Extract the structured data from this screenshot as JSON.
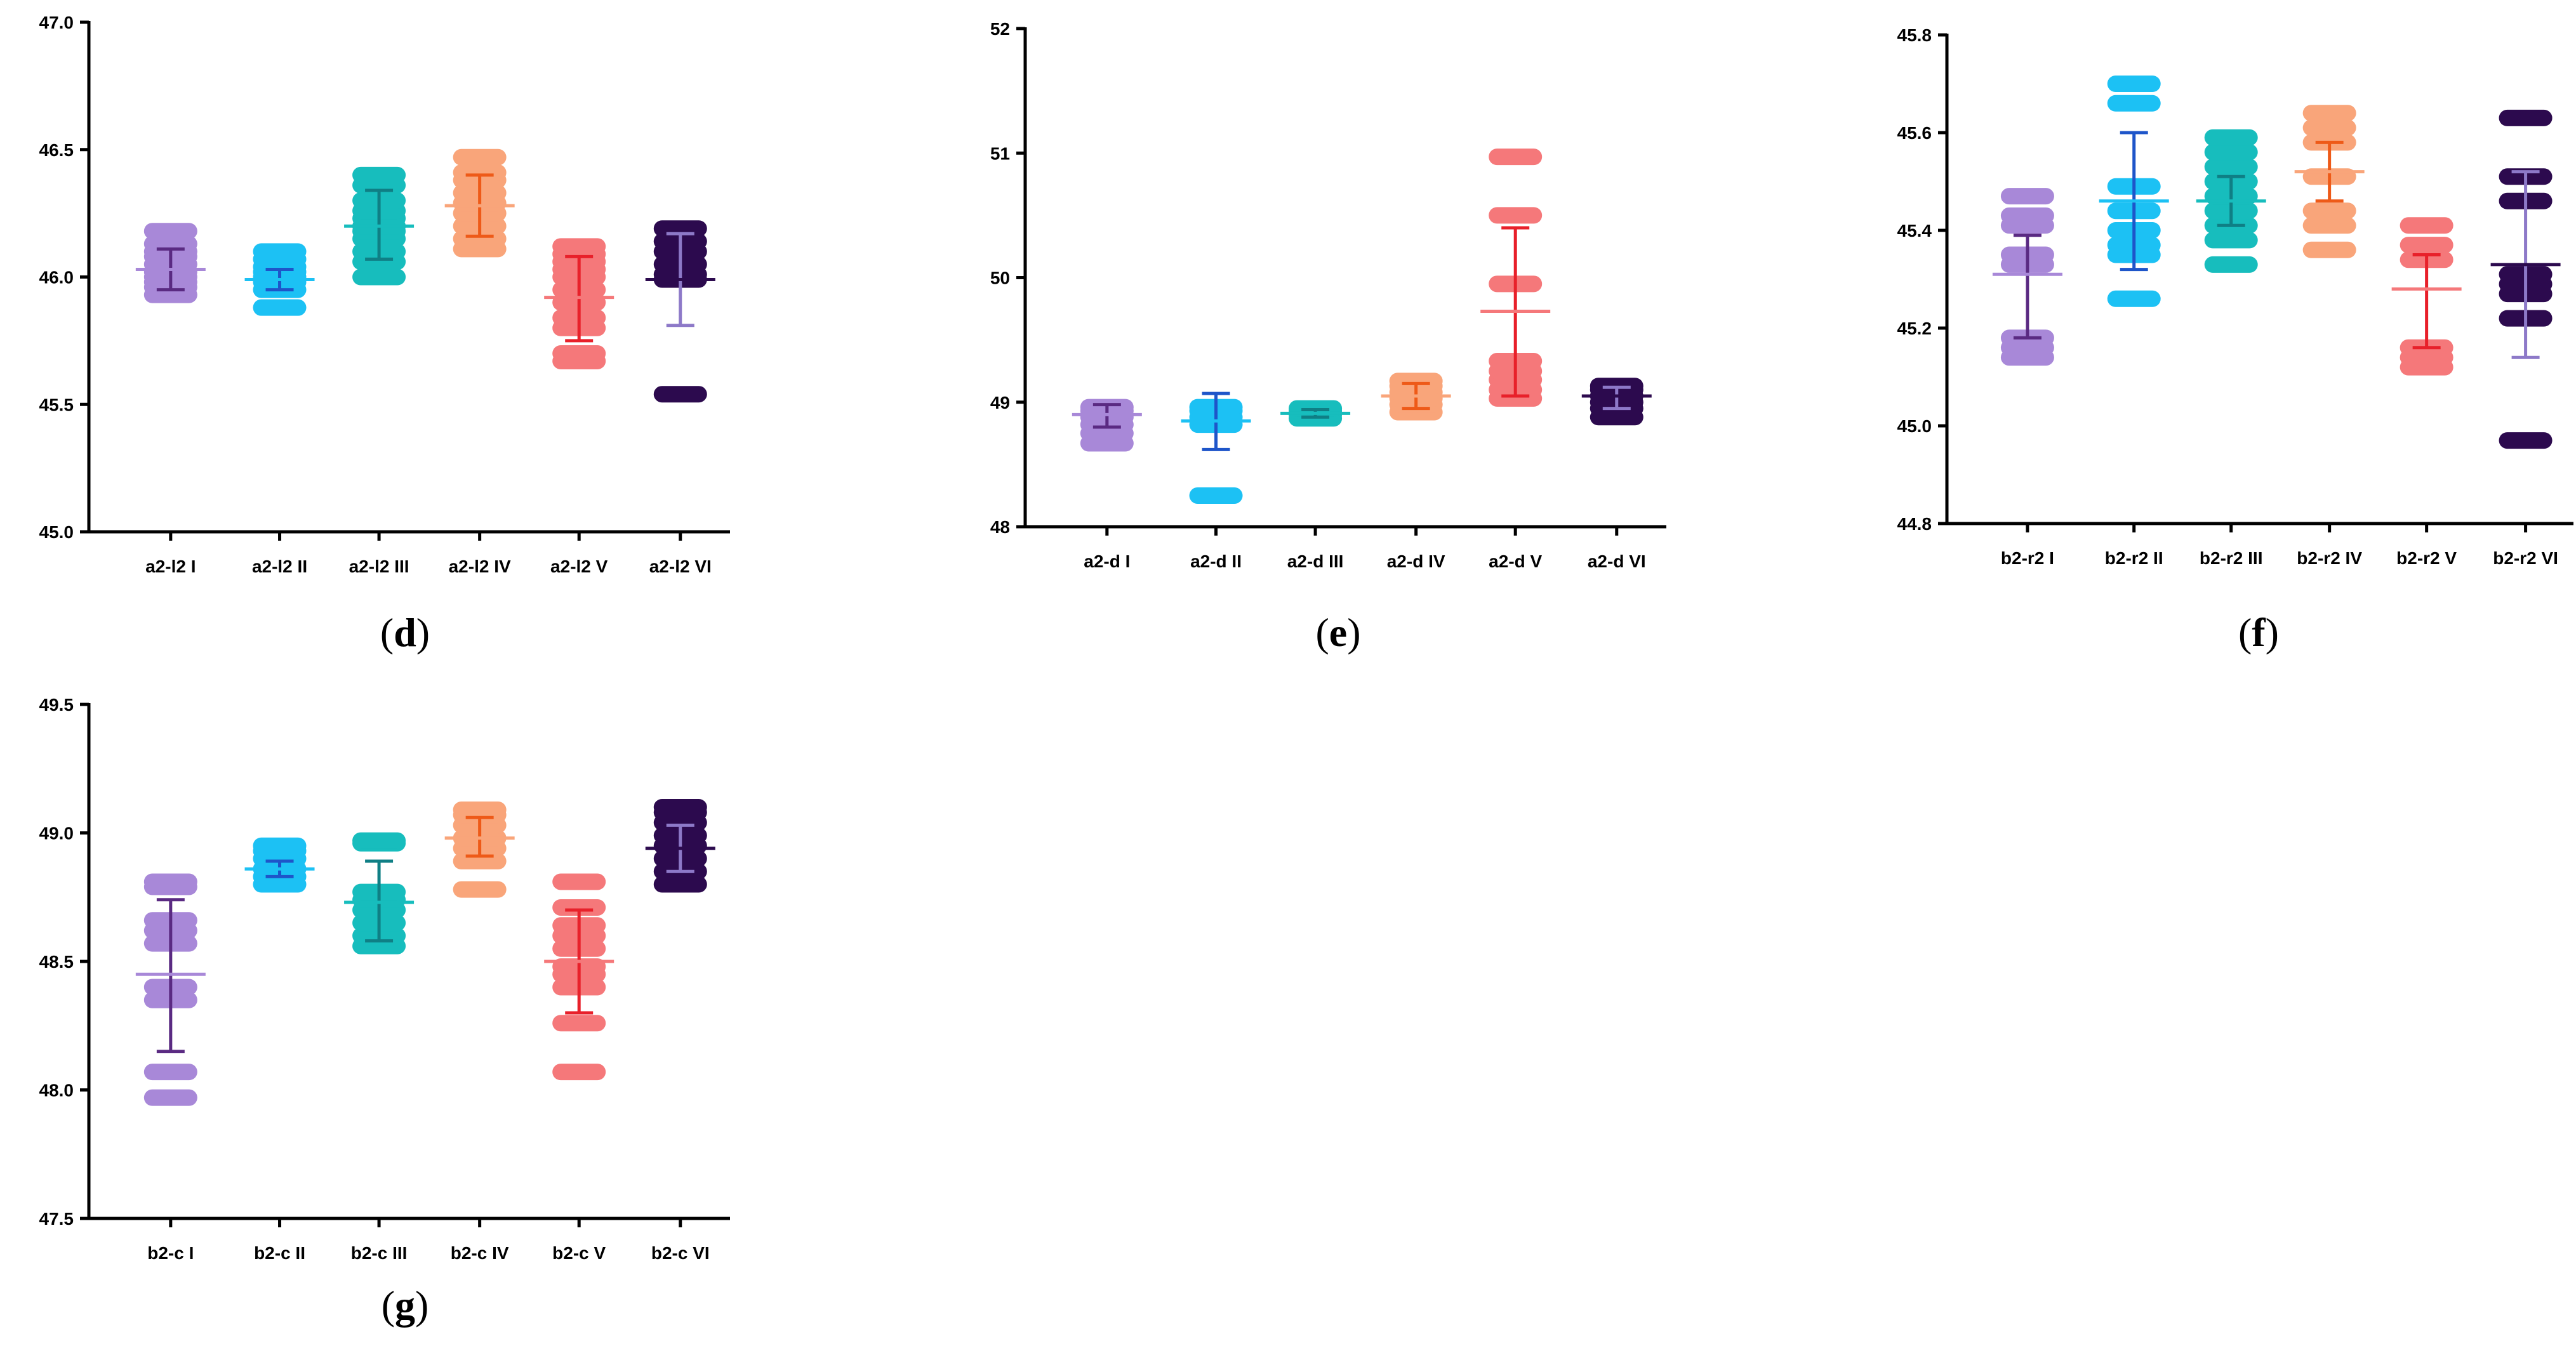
{
  "colors": [
    "#a888d8",
    "#1cc1f4",
    "#17bdbd",
    "#f9a57a",
    "#f5787a",
    "#2c0a4e"
  ],
  "bar_colors": [
    "#5a2a82",
    "#1e55c9",
    "#0f7f85",
    "#ee5a18",
    "#e8202a",
    "#8d79c8"
  ],
  "chart_data": [
    {
      "type": "scatter",
      "panel_label": "d",
      "categories": [
        "a2-l2 I",
        "a2-l2 II",
        "a2-l2 III",
        "a2-l2 IV",
        "a2-l2 V",
        "a2-l2 VI"
      ],
      "ylim": [
        45.0,
        47.0
      ],
      "yticks": [
        "45.0",
        "45.5",
        "46.0",
        "46.5",
        "47.0"
      ],
      "series": [
        {
          "name": "a2-l2 I",
          "points": [
            45.93,
            45.96,
            45.98,
            46.0,
            46.02,
            46.05,
            46.08,
            46.1,
            46.13,
            46.18
          ],
          "mean": 46.03,
          "sd_low": 45.95,
          "sd_high": 46.11
        },
        {
          "name": "a2-l2 II",
          "points": [
            45.88,
            45.95,
            45.98,
            46.0,
            46.02,
            46.04,
            46.07,
            46.1
          ],
          "mean": 45.99,
          "sd_low": 45.95,
          "sd_high": 46.03
        },
        {
          "name": "a2-l2 III",
          "points": [
            46.0,
            46.06,
            46.1,
            46.15,
            46.18,
            46.2,
            46.23,
            46.26,
            46.3,
            46.36,
            46.4
          ],
          "mean": 46.2,
          "sd_low": 46.07,
          "sd_high": 46.34
        },
        {
          "name": "a2-l2 IV",
          "points": [
            46.11,
            46.15,
            46.2,
            46.25,
            46.29,
            46.33,
            46.38,
            46.41,
            46.47
          ],
          "mean": 46.28,
          "sd_low": 46.16,
          "sd_high": 46.4
        },
        {
          "name": "a2-l2 V",
          "points": [
            45.67,
            45.7,
            45.8,
            45.84,
            45.9,
            45.95,
            46.0,
            46.03,
            46.06,
            46.09,
            46.12
          ],
          "mean": 45.92,
          "sd_low": 45.75,
          "sd_high": 46.08
        },
        {
          "name": "a2-l2 VI",
          "points": [
            45.54,
            45.99,
            46.01,
            46.05,
            46.1,
            46.14,
            46.19
          ],
          "mean": 45.99,
          "sd_low": 45.81,
          "sd_high": 46.17
        }
      ]
    },
    {
      "type": "scatter",
      "panel_label": "e",
      "categories": [
        "a2-d I",
        "a2-d II",
        "a2-d III",
        "a2-d IV",
        "a2-d V",
        "a2-d VI"
      ],
      "ylim": [
        48,
        52
      ],
      "yticks": [
        "48",
        "49",
        "50",
        "51",
        "52"
      ],
      "series": [
        {
          "name": "a2-d I",
          "points": [
            48.67,
            48.75,
            48.82,
            48.88,
            48.93,
            48.96
          ],
          "mean": 48.9,
          "sd_low": 48.8,
          "sd_high": 48.98
        },
        {
          "name": "a2-d II",
          "points": [
            48.25,
            48.82,
            48.88,
            48.93,
            48.96
          ],
          "mean": 48.85,
          "sd_low": 48.62,
          "sd_high": 49.07
        },
        {
          "name": "a2-d III",
          "points": [
            48.87,
            48.9,
            48.93,
            48.95
          ],
          "mean": 48.91,
          "sd_low": 48.88,
          "sd_high": 48.94
        },
        {
          "name": "a2-d IV",
          "points": [
            48.92,
            48.98,
            49.03,
            49.08,
            49.13,
            49.17
          ],
          "mean": 49.05,
          "sd_low": 48.95,
          "sd_high": 49.15
        },
        {
          "name": "a2-d V",
          "points": [
            49.03,
            49.1,
            49.18,
            49.25,
            49.33,
            49.95,
            50.5,
            50.97
          ],
          "mean": 49.73,
          "sd_low": 49.05,
          "sd_high": 50.4
        },
        {
          "name": "a2-d VI",
          "points": [
            48.88,
            48.95,
            49.0,
            49.05,
            49.1,
            49.13
          ],
          "mean": 49.05,
          "sd_low": 48.95,
          "sd_high": 49.12
        }
      ]
    },
    {
      "type": "scatter",
      "panel_label": "f",
      "categories": [
        "b2-r2 I",
        "b2-r2 II",
        "b2-r2 III",
        "b2-r2 IV",
        "b2-r2 V",
        "b2-r2 VI"
      ],
      "ylim": [
        44.8,
        45.8
      ],
      "yticks": [
        "44.8",
        "45.0",
        "45.2",
        "45.4",
        "45.6",
        "45.8"
      ],
      "series": [
        {
          "name": "b2-r2 I",
          "points": [
            45.14,
            45.16,
            45.18,
            45.33,
            45.35,
            45.41,
            45.43,
            45.47
          ],
          "mean": 45.31,
          "sd_low": 45.18,
          "sd_high": 45.39
        },
        {
          "name": "b2-r2 II",
          "points": [
            45.26,
            45.35,
            45.37,
            45.4,
            45.44,
            45.49,
            45.66,
            45.7
          ],
          "mean": 45.46,
          "sd_low": 45.32,
          "sd_high": 45.6
        },
        {
          "name": "b2-r2 III",
          "points": [
            45.33,
            45.38,
            45.41,
            45.44,
            45.47,
            45.5,
            45.53,
            45.56,
            45.59
          ],
          "mean": 45.46,
          "sd_low": 45.41,
          "sd_high": 45.51
        },
        {
          "name": "b2-r2 IV",
          "points": [
            45.36,
            45.41,
            45.44,
            45.51,
            45.58,
            45.61,
            45.64
          ],
          "mean": 45.52,
          "sd_low": 45.46,
          "sd_high": 45.58
        },
        {
          "name": "b2-r2 V",
          "points": [
            45.12,
            45.14,
            45.16,
            45.34,
            45.37,
            45.41
          ],
          "mean": 45.28,
          "sd_low": 45.16,
          "sd_high": 45.35
        },
        {
          "name": "b2-r2 VI",
          "points": [
            44.97,
            45.22,
            45.27,
            45.29,
            45.31,
            45.46,
            45.51,
            45.63
          ],
          "mean": 45.33,
          "sd_low": 45.14,
          "sd_high": 45.52
        }
      ]
    },
    {
      "type": "scatter",
      "panel_label": "g",
      "categories": [
        "b2-c I",
        "b2-c II",
        "b2-c III",
        "b2-c IV",
        "b2-c V",
        "b2-c VI"
      ],
      "ylim": [
        47.5,
        49.5
      ],
      "yticks": [
        "47.5",
        "48.0",
        "48.5",
        "49.0",
        "49.5"
      ],
      "series": [
        {
          "name": "b2-c I",
          "points": [
            47.97,
            48.07,
            48.35,
            48.4,
            48.57,
            48.62,
            48.66,
            48.79,
            48.81
          ],
          "mean": 48.45,
          "sd_low": 48.15,
          "sd_high": 48.74
        },
        {
          "name": "b2-c II",
          "points": [
            48.8,
            48.83,
            48.86,
            48.9,
            48.93,
            48.95
          ],
          "mean": 48.86,
          "sd_low": 48.83,
          "sd_high": 48.89
        },
        {
          "name": "b2-c III",
          "points": [
            48.56,
            48.6,
            48.65,
            48.7,
            48.74,
            48.77,
            48.96,
            48.97
          ],
          "mean": 48.73,
          "sd_low": 48.58,
          "sd_high": 48.89
        },
        {
          "name": "b2-c IV",
          "points": [
            48.78,
            48.89,
            48.94,
            48.98,
            49.03,
            49.07,
            49.09
          ],
          "mean": 48.98,
          "sd_low": 48.91,
          "sd_high": 49.06
        },
        {
          "name": "b2-c V",
          "points": [
            48.07,
            48.26,
            48.4,
            48.45,
            48.48,
            48.55,
            48.6,
            48.64,
            48.71,
            48.81
          ],
          "mean": 48.5,
          "sd_low": 48.3,
          "sd_high": 48.7
        },
        {
          "name": "b2-c VI",
          "points": [
            48.8,
            48.85,
            48.9,
            48.95,
            48.99,
            49.04,
            49.08,
            49.1
          ],
          "mean": 48.94,
          "sd_low": 48.85,
          "sd_high": 49.03
        }
      ]
    }
  ]
}
